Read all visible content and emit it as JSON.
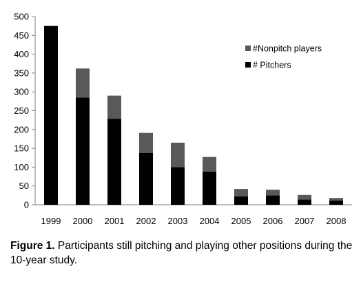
{
  "chart_data": {
    "type": "bar",
    "stacked": true,
    "categories": [
      "1999",
      "2000",
      "2001",
      "2002",
      "2003",
      "2004",
      "2005",
      "2006",
      "2007",
      "2008"
    ],
    "series": [
      {
        "name": "# Pitchers",
        "color": "#000000",
        "values": [
          475,
          285,
          228,
          138,
          100,
          88,
          22,
          25,
          14,
          11
        ]
      },
      {
        "name": "#Nonpitch players",
        "color": "#595959",
        "values": [
          0,
          77,
          62,
          53,
          65,
          39,
          20,
          15,
          12,
          7
        ]
      }
    ],
    "y_ticks": [
      "0",
      "50",
      "100",
      "150",
      "200",
      "250",
      "300",
      "350",
      "400",
      "450",
      "500"
    ],
    "ylim": [
      0,
      500
    ],
    "grid": false,
    "legend_position": "top-right"
  },
  "caption": {
    "label": "Figure 1.",
    "text": " Participants still pitching and playing other positions during the 10-year study."
  }
}
